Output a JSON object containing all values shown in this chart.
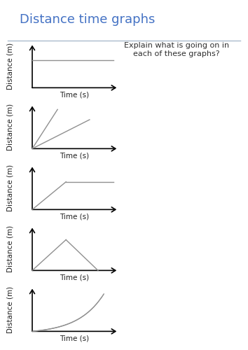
{
  "title": "Distance time graphs",
  "title_color": "#4472C4",
  "annotation_text": "Explain what is going on in\neach of these graphs?",
  "annotation_color": "#303030",
  "xlabel": "Time (s)",
  "ylabel": "Distance (m)",
  "line_color": "#909090",
  "axis_color": "#000000",
  "bg_color": "#ffffff",
  "sep_line_color": "#aabbcc",
  "title_fontsize": 13,
  "label_fontsize": 7.5,
  "annotation_fontsize": 8,
  "graphs": [
    {
      "type": "horizontal"
    },
    {
      "type": "two_lines"
    },
    {
      "type": "line_then_flat"
    },
    {
      "type": "triangle"
    },
    {
      "type": "curve"
    }
  ]
}
